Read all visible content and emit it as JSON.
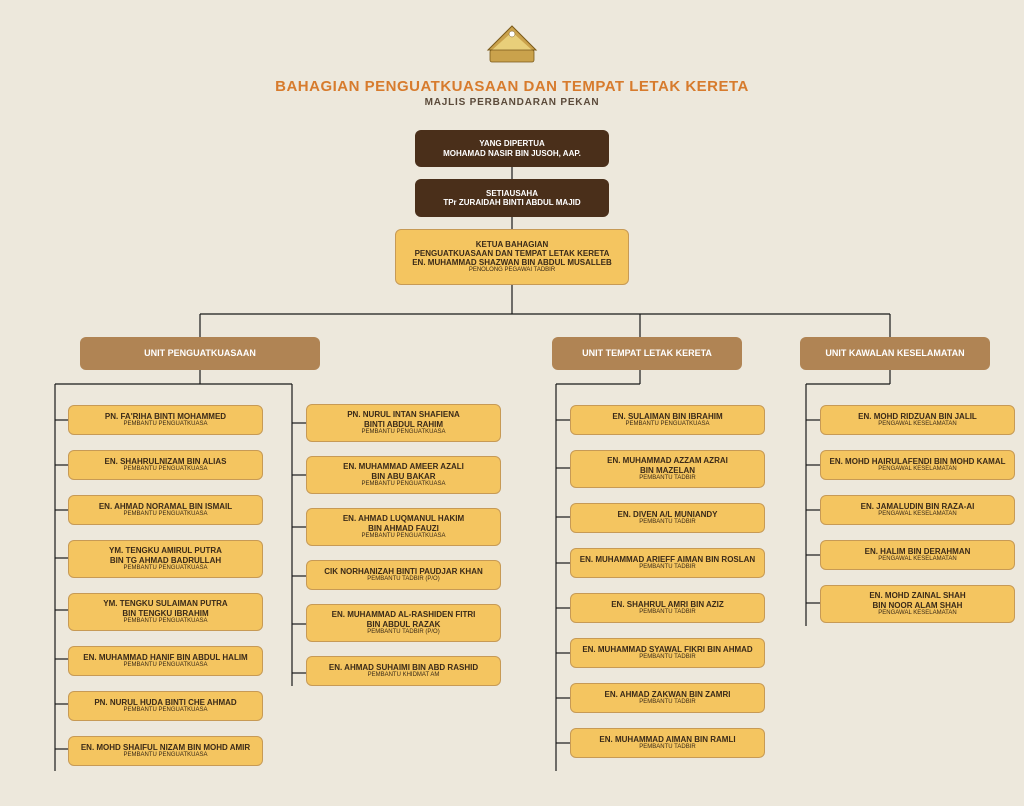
{
  "chart": {
    "type": "org-chart",
    "background_color": "#ede8dc",
    "title": "BAHAGIAN PENGUATKUASAAN DAN TEMPAT LETAK KERETA",
    "title_color": "#d77b2d",
    "title_fontsize": 15,
    "subtitle": "MAJLIS PERBANDARAN PEKAN",
    "subtitle_color": "#5b4a3a",
    "subtitle_fontsize": 10,
    "colors": {
      "dark": "#4a2f1a",
      "brown": "#b08454",
      "yellow": "#f4c560",
      "text_dark": "#3a2a18",
      "text_light": "#ffffff",
      "line": "#1a1a1a"
    },
    "node_border_radius": 6,
    "font_tiny": 6,
    "font_small": 7,
    "font_med": 8
  },
  "top": {
    "president": {
      "title": "YANG DIPERTUA",
      "name": "MOHAMAD NASIR BIN JUSOH, AAP."
    },
    "secretary": {
      "title": "SETIAUSAHA",
      "name": "TPr ZURAIDAH BINTI ABDUL MAJID"
    },
    "head": {
      "title": "KETUA BAHAGIAN",
      "dept": "PENGUATKUASAAN DAN TEMPAT LETAK KERETA",
      "name": "EN. MUHAMMAD SHAZWAN BIN ABDUL MUSALLEB",
      "role": "PENOLONG PEGAWAI TADBIR"
    }
  },
  "units": {
    "u1": {
      "label": "UNIT PENGUATKUASAAN"
    },
    "u2": {
      "label": "UNIT TEMPAT LETAK KERETA"
    },
    "u3": {
      "label": "UNIT KAWALAN KESELAMATAN"
    }
  },
  "u1a": [
    {
      "name": "PN. FA'RIHA BINTI MOHAMMED",
      "role": "PEMBANTU PENGUATKUASA"
    },
    {
      "name": "EN. SHAHRULNIZAM BIN ALIAS",
      "role": "PEMBANTU PENGUATKUASA"
    },
    {
      "name": "EN. AHMAD NORAMAL BIN ISMAIL",
      "role": "PEMBANTU PENGUATKUASA"
    },
    {
      "name": "YM. TENGKU AMIRUL PUTRA",
      "name2": "BIN TG AHMAD BADRULLAH",
      "role": "PEMBANTU PENGUATKUASA"
    },
    {
      "name": "YM. TENGKU SULAIMAN PUTRA",
      "name2": "BIN TENGKU IBRAHIM",
      "role": "PEMBANTU PENGUATKUASA"
    },
    {
      "name": "EN. MUHAMMAD HANIF BIN ABDUL HALIM",
      "role": "PEMBANTU PENGUATKUASA"
    },
    {
      "name": "PN. NURUL HUDA BINTI CHE AHMAD",
      "role": "PEMBANTU PENGUATKUASA"
    },
    {
      "name": "EN. MOHD SHAIFUL NIZAM BIN MOHD AMIR",
      "role": "PEMBANTU PENGUATKUASA"
    }
  ],
  "u1b": [
    {
      "name": "PN. NURUL INTAN SHAFIENA",
      "name2": "BINTI ABDUL RAHIM",
      "role": "PEMBANTU PENGUATKUASA"
    },
    {
      "name": "EN. MUHAMMAD AMEER AZALI",
      "name2": "BIN ABU BAKAR",
      "role": "PEMBANTU PENGUATKUASA"
    },
    {
      "name": "EN. AHMAD LUQMANUL HAKIM",
      "name2": "BIN AHMAD FAUZI",
      "role": "PEMBANTU PENGUATKUASA"
    },
    {
      "name": "CIK NORHANIZAH BINTI PAUDJAR KHAN",
      "role": "PEMBANTU TADBIR (P/O)"
    },
    {
      "name": "EN. MUHAMMAD AL-RASHIDEN FITRI",
      "name2": "BIN ABDUL RAZAK",
      "role": "PEMBANTU TADBIR (P/O)"
    },
    {
      "name": "EN. AHMAD SUHAIMI BIN ABD RASHID",
      "role": "PEMBANTU KHIDMAT AM"
    }
  ],
  "u2a": [
    {
      "name": "EN. SULAIMAN BIN IBRAHIM",
      "role": "PEMBANTU PENGUATKUASA"
    },
    {
      "name": "EN. MUHAMMAD AZZAM AZRAI",
      "name2": "BIN MAZELAN",
      "role": "PEMBANTU TADBIR"
    },
    {
      "name": "EN. DIVEN A/L MUNIANDY",
      "role": "PEMBANTU TADBIR"
    },
    {
      "name": "EN. MUHAMMAD ARIEFF AIMAN BIN ROSLAN",
      "role": "PEMBANTU TADBIR"
    },
    {
      "name": "EN. SHAHRUL AMRI BIN AZIZ",
      "role": "PEMBANTU TADBIR"
    },
    {
      "name": "EN. MUHAMMAD SYAWAL FIKRI BIN AHMAD",
      "role": "PEMBANTU TADBIR"
    },
    {
      "name": "EN. AHMAD ZAKWAN BIN ZAMRI",
      "role": "PEMBANTU TADBIR"
    },
    {
      "name": "EN. MUHAMMAD AIMAN BIN RAMLI",
      "role": "PEMBANTU TADBIR"
    }
  ],
  "u3a": [
    {
      "name": "EN. MOHD RIDZUAN BIN JALIL",
      "role": "PENGAWAL KESELAMATAN"
    },
    {
      "name": "EN. MOHD HAIRULAFENDI BIN MOHD KAMAL",
      "role": "PENGAWAL KESELAMATAN"
    },
    {
      "name": "EN. JAMALUDIN BIN RAZA-AI",
      "role": "PENGAWAL KESELAMATAN"
    },
    {
      "name": "EN. HALIM BIN DERAHMAN",
      "role": "PENGAWAL KESELAMATAN"
    },
    {
      "name": "EN. MOHD ZAINAL SHAH",
      "name2": "BIN NOOR ALAM SHAH",
      "role": "PENGAWAL KESELAMATAN"
    }
  ]
}
